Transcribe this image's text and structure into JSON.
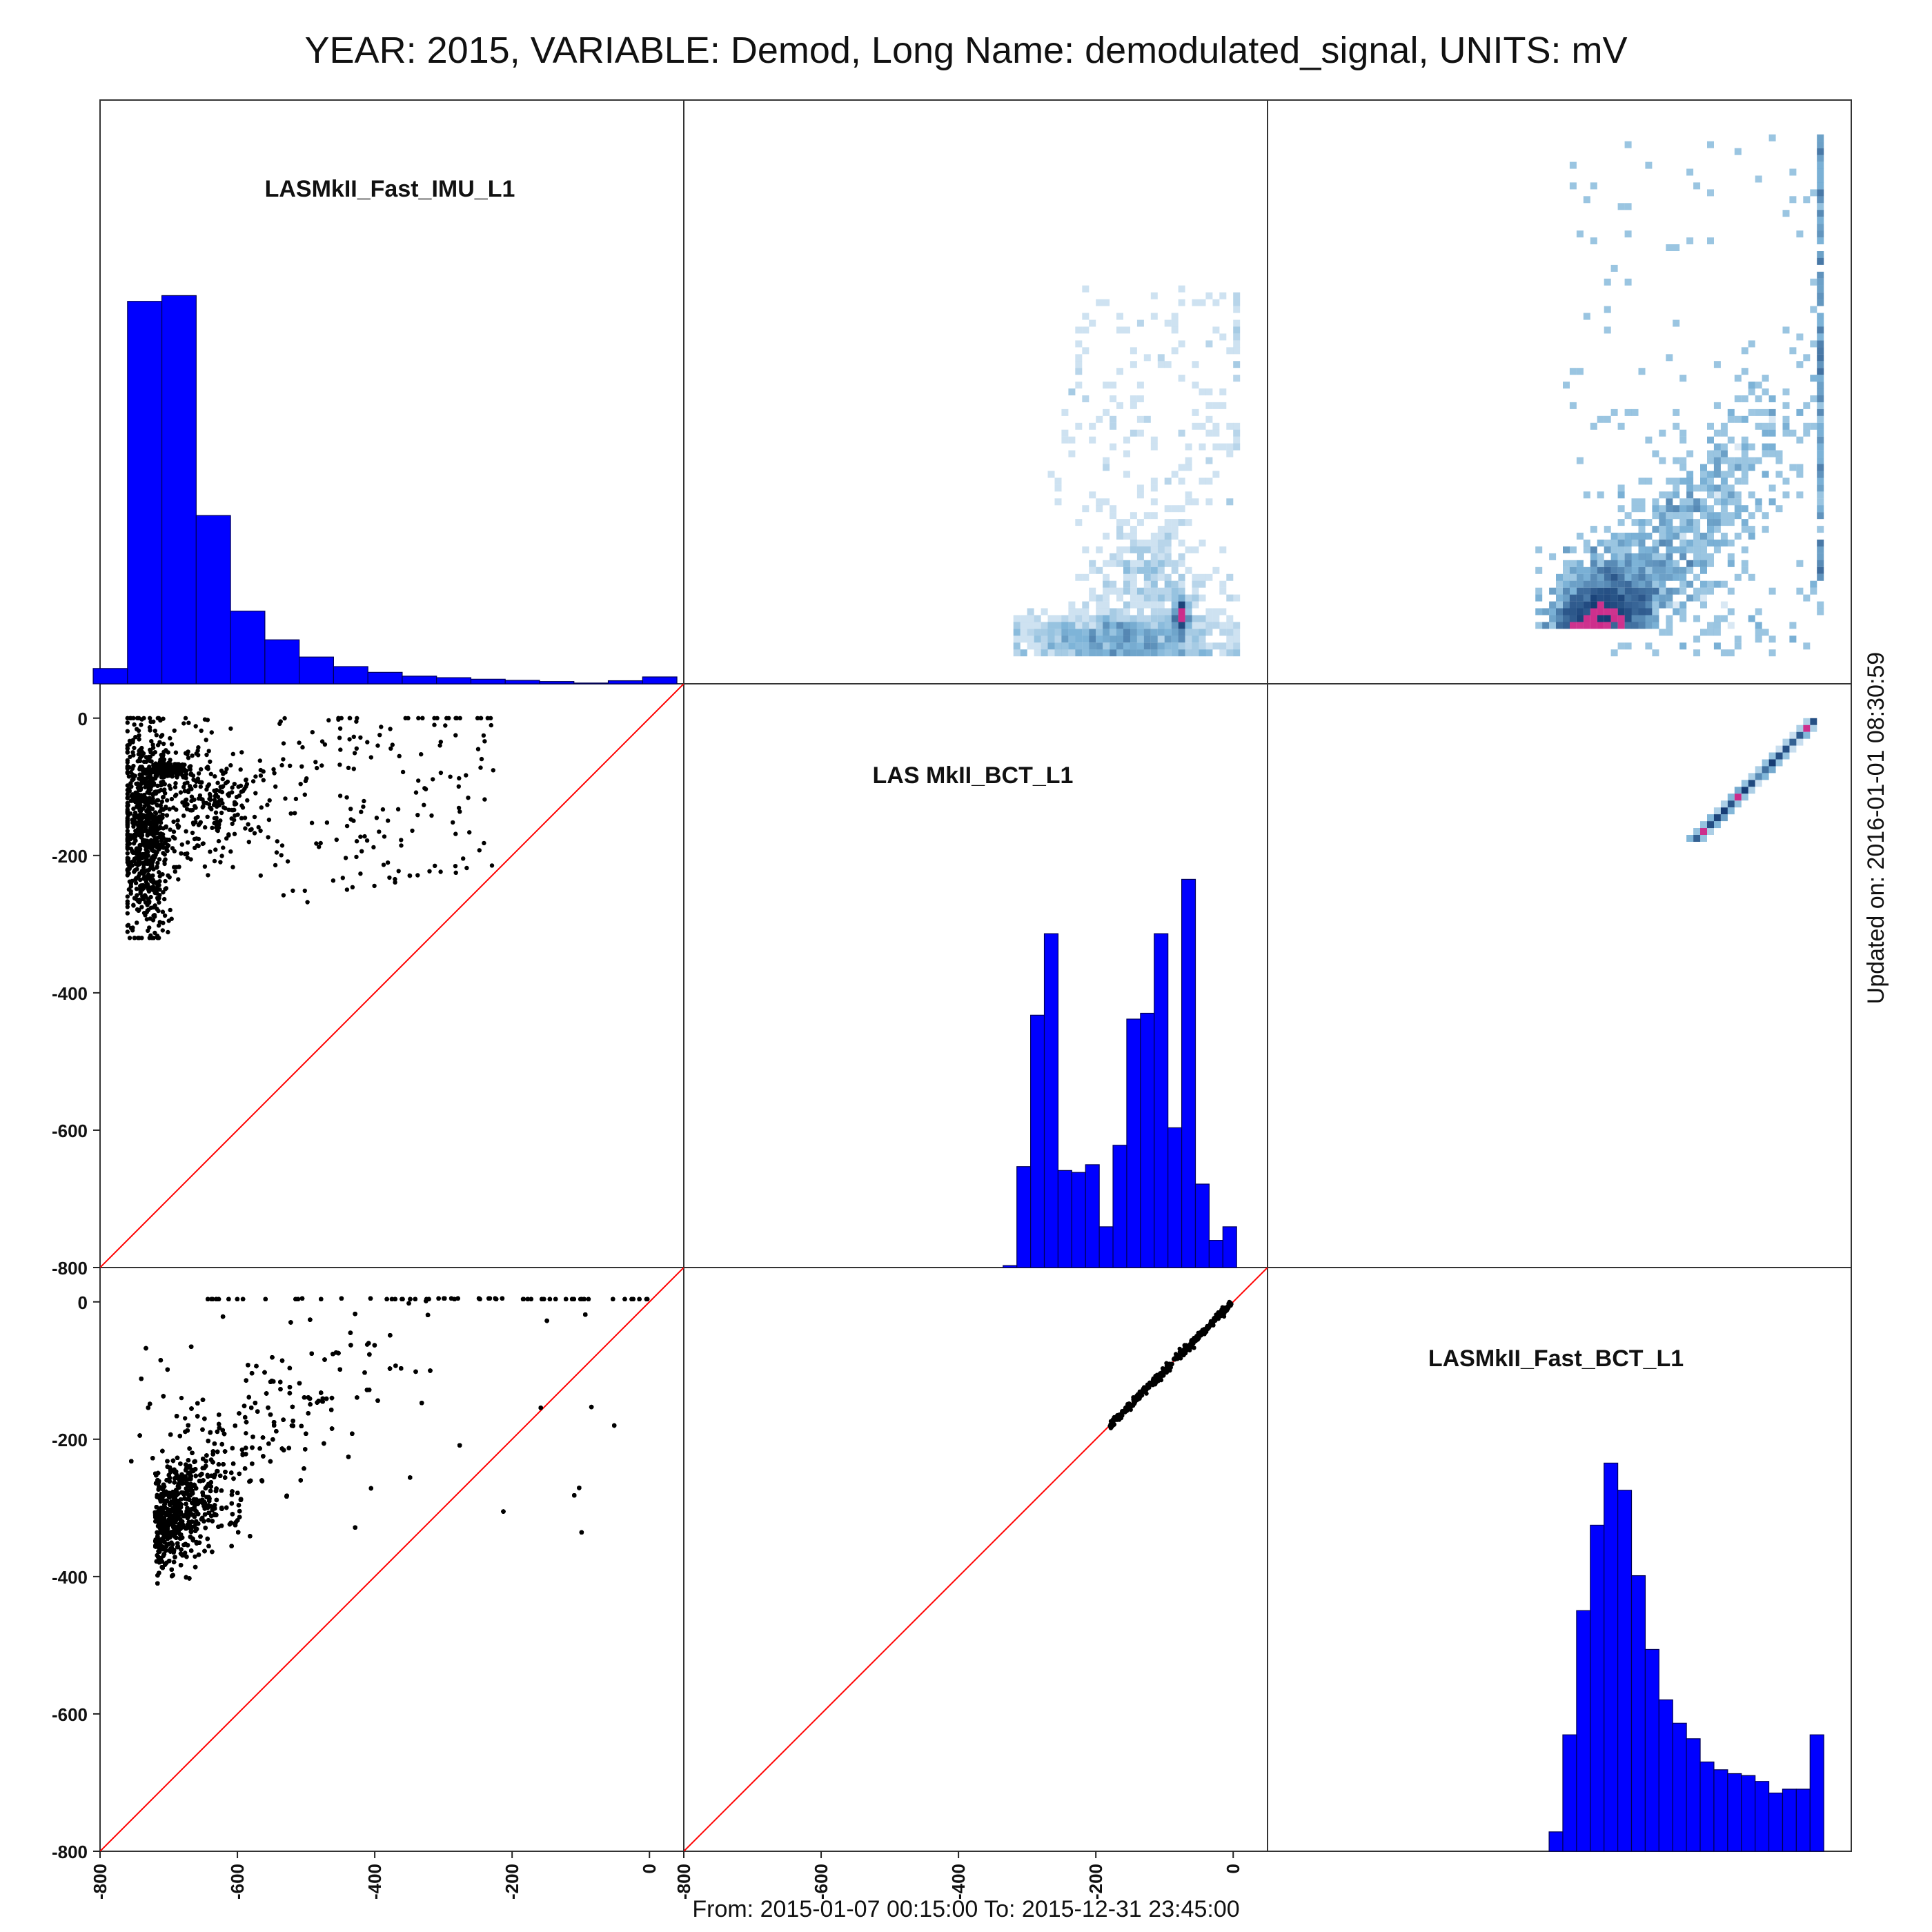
{
  "title": "YEAR: 2015, VARIABLE: Demod, Long Name: demodulated_signal, UNITS: mV",
  "footer": "From: 2015-01-07 00:15:00 To: 2015-12-31 23:45:00",
  "updated": "Updated on: 2016-01-01 08:30:59",
  "colors": {
    "hist_fill": "#0000ff",
    "hist_edge": "#000055",
    "diag_line": "#ff0000",
    "point": "#000000",
    "density_light": "#c6dbef",
    "density_mid": "#4292c6",
    "density_dark": "#08306b",
    "density_peak": "#cc2b8a",
    "frame": "#333333"
  },
  "chart_data": {
    "type": "scatter-matrix",
    "variables": [
      "LASMkII_Fast_IMU_L1",
      "LAS MkII_BCT_L1",
      "LASMkII_Fast_BCT_L1"
    ],
    "axis_range": [
      -800,
      50
    ],
    "ticks": [
      -800,
      -600,
      -400,
      -200,
      0
    ],
    "tick_labels": [
      "-800",
      "-600",
      "-400",
      "-200",
      "0"
    ],
    "histograms": [
      {
        "variable": "LASMkII_Fast_IMU_L1",
        "bin_edges": [
          -810,
          -760,
          -710,
          -660,
          -610,
          -560,
          -510,
          -460,
          -410,
          -360,
          -310,
          -260,
          -210,
          -160,
          -110,
          -60,
          -10,
          40
        ],
        "counts": [
          4,
          100,
          101.5,
          44,
          19,
          11.5,
          7,
          4.5,
          3,
          2,
          1.6,
          1.2,
          0.9,
          0.6,
          0.2,
          0.8,
          1.8
        ]
      },
      {
        "variable": "LAS MkII_BCT_L1",
        "bin_edges": [
          -335,
          -315,
          -295,
          -275,
          -255,
          -235,
          -215,
          -195,
          -175,
          -155,
          -135,
          -115,
          -95,
          -75,
          -55,
          -35,
          -15,
          5
        ],
        "counts": [
          0.5,
          26,
          65,
          86,
          25,
          24.5,
          26.5,
          10.5,
          31.5,
          64,
          65.5,
          86,
          36,
          100,
          21.5,
          7,
          10.5
        ]
      },
      {
        "variable": "LASMkII_Fast_BCT_L1",
        "bin_edges": [
          -410,
          -390,
          -370,
          -350,
          -330,
          -310,
          -290,
          -270,
          -250,
          -230,
          -210,
          -190,
          -170,
          -150,
          -130,
          -110,
          -90,
          -70,
          -50,
          -30,
          -10,
          10
        ],
        "counts": [
          0,
          5,
          30,
          62,
          84,
          100,
          93,
          71,
          52,
          39,
          33,
          29,
          23,
          21,
          20,
          19.5,
          18,
          15,
          16,
          16,
          30
        ]
      }
    ],
    "identity_line": true,
    "pairs": [
      {
        "x": "LASMkII_Fast_IMU_L1",
        "y": "LAS MkII_BCT_L1",
        "points": 1500,
        "y_range": [
          -320,
          0
        ]
      },
      {
        "x": "LASMkII_Fast_IMU_L1",
        "y": "LASMkII_Fast_BCT_L1",
        "points": 20000,
        "y_range": [
          -420,
          5
        ]
      },
      {
        "x": "LAS MkII_BCT_L1",
        "y": "LASMkII_Fast_BCT_L1",
        "points": 400,
        "y_range": [
          -185,
          0
        ]
      }
    ]
  }
}
